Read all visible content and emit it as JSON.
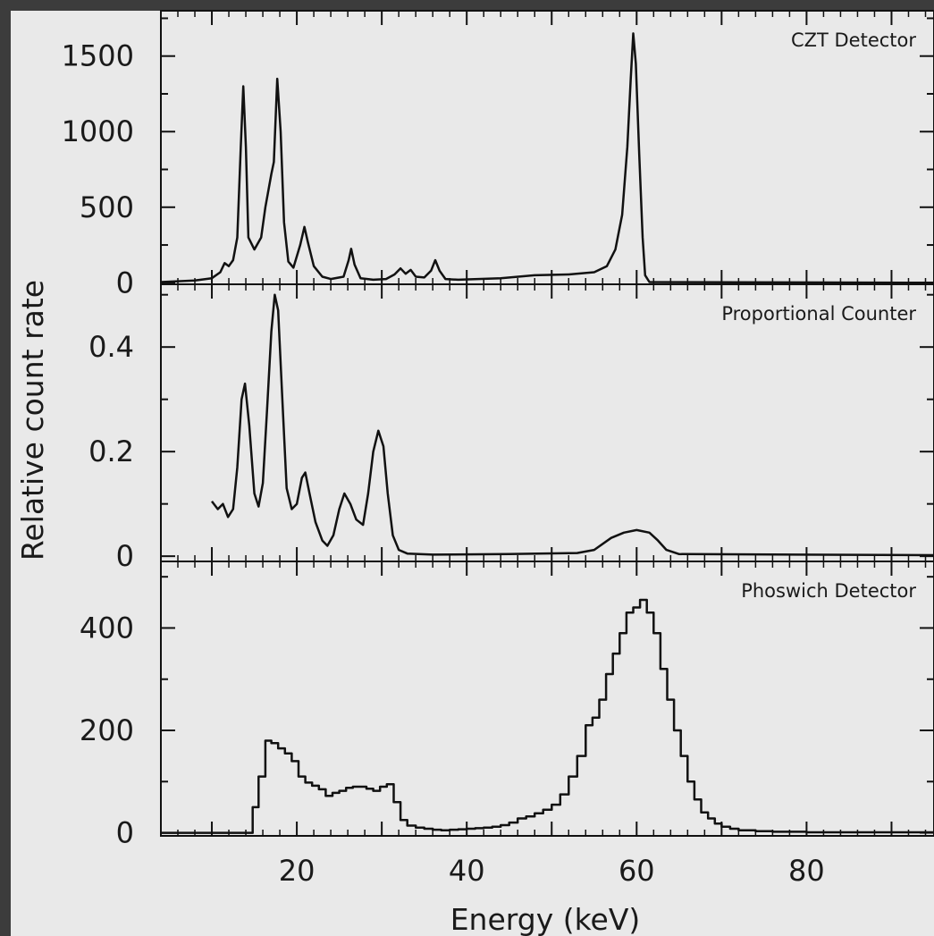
{
  "colors": {
    "background": "#3c3c3c",
    "panel": "#e9e9e9",
    "ink": "#111111"
  },
  "chart_data": {
    "type": "line",
    "xlabel": "Energy (keV)",
    "ylabel": "Relative count rate",
    "x_range": [
      4,
      95
    ],
    "x_ticks": [
      "20",
      "40",
      "60",
      "80"
    ],
    "grid": false,
    "subplots": [
      {
        "label": "CZT Detector",
        "y_range": [
          -10,
          1800
        ],
        "y_ticks": [
          "0",
          "500",
          "1000",
          "1500"
        ],
        "series": [
          {
            "style": "line",
            "points": [
              [
                4,
                5
              ],
              [
                8,
                15
              ],
              [
                10,
                30
              ],
              [
                11,
                70
              ],
              [
                11.5,
                130
              ],
              [
                12,
                110
              ],
              [
                12.5,
                150
              ],
              [
                13,
                300
              ],
              [
                13.4,
                900
              ],
              [
                13.7,
                1300
              ],
              [
                14,
                900
              ],
              [
                14.3,
                300
              ],
              [
                15,
                220
              ],
              [
                15.8,
                300
              ],
              [
                16.3,
                500
              ],
              [
                17,
                720
              ],
              [
                17.3,
                800
              ],
              [
                17.7,
                1350
              ],
              [
                18.1,
                1000
              ],
              [
                18.5,
                400
              ],
              [
                19,
                140
              ],
              [
                19.6,
                100
              ],
              [
                20.4,
                250
              ],
              [
                20.9,
                370
              ],
              [
                21.3,
                270
              ],
              [
                22,
                110
              ],
              [
                23,
                40
              ],
              [
                24,
                25
              ],
              [
                25.5,
                40
              ],
              [
                26.1,
                150
              ],
              [
                26.4,
                225
              ],
              [
                26.8,
                120
              ],
              [
                27.5,
                30
              ],
              [
                29,
                20
              ],
              [
                30.5,
                25
              ],
              [
                31.5,
                55
              ],
              [
                32.2,
                95
              ],
              [
                32.8,
                60
              ],
              [
                33.4,
                85
              ],
              [
                34,
                40
              ],
              [
                35,
                35
              ],
              [
                35.8,
                80
              ],
              [
                36.3,
                150
              ],
              [
                36.8,
                80
              ],
              [
                37.5,
                25
              ],
              [
                39,
                20
              ],
              [
                44,
                30
              ],
              [
                48,
                50
              ],
              [
                52,
                55
              ],
              [
                55,
                70
              ],
              [
                56.5,
                110
              ],
              [
                57.5,
                220
              ],
              [
                58.3,
                450
              ],
              [
                58.9,
                900
              ],
              [
                59.3,
                1350
              ],
              [
                59.6,
                1650
              ],
              [
                59.9,
                1450
              ],
              [
                60.3,
                850
              ],
              [
                60.7,
                300
              ],
              [
                61,
                50
              ],
              [
                61.5,
                5
              ],
              [
                95,
                0
              ]
            ]
          }
        ]
      },
      {
        "label": "Proportional Counter",
        "y_range": [
          -0.01,
          0.52
        ],
        "y_ticks": [
          "0",
          "0.2",
          "0.4"
        ],
        "series": [
          {
            "style": "line",
            "points": [
              [
                10,
                0.105
              ],
              [
                10.7,
                0.09
              ],
              [
                11.3,
                0.1
              ],
              [
                11.9,
                0.075
              ],
              [
                12.5,
                0.09
              ],
              [
                13,
                0.17
              ],
              [
                13.5,
                0.3
              ],
              [
                13.9,
                0.33
              ],
              [
                14.4,
                0.25
              ],
              [
                15,
                0.12
              ],
              [
                15.5,
                0.095
              ],
              [
                16,
                0.14
              ],
              [
                16.5,
                0.28
              ],
              [
                17,
                0.43
              ],
              [
                17.4,
                0.5
              ],
              [
                17.8,
                0.47
              ],
              [
                18.3,
                0.3
              ],
              [
                18.8,
                0.13
              ],
              [
                19.4,
                0.09
              ],
              [
                20,
                0.1
              ],
              [
                20.6,
                0.15
              ],
              [
                21,
                0.16
              ],
              [
                21.5,
                0.12
              ],
              [
                22.2,
                0.065
              ],
              [
                23,
                0.03
              ],
              [
                23.6,
                0.02
              ],
              [
                24.3,
                0.04
              ],
              [
                25,
                0.09
              ],
              [
                25.6,
                0.12
              ],
              [
                26.3,
                0.1
              ],
              [
                27,
                0.07
              ],
              [
                27.8,
                0.06
              ],
              [
                28.4,
                0.12
              ],
              [
                29,
                0.2
              ],
              [
                29.6,
                0.24
              ],
              [
                30.2,
                0.21
              ],
              [
                30.7,
                0.12
              ],
              [
                31.3,
                0.04
              ],
              [
                32,
                0.012
              ],
              [
                33,
                0.005
              ],
              [
                36,
                0.003
              ],
              [
                45,
                0.004
              ],
              [
                53,
                0.006
              ],
              [
                55,
                0.012
              ],
              [
                57,
                0.035
              ],
              [
                58.5,
                0.045
              ],
              [
                60,
                0.05
              ],
              [
                61.5,
                0.045
              ],
              [
                62.5,
                0.03
              ],
              [
                63.5,
                0.012
              ],
              [
                65,
                0.004
              ],
              [
                95,
                0.002
              ]
            ]
          }
        ]
      },
      {
        "label": "Phoswich Detector",
        "y_range": [
          -6,
          530
        ],
        "y_ticks": [
          "0",
          "200",
          "400"
        ],
        "series": [
          {
            "style": "step",
            "points": [
              [
                4,
                0
              ],
              [
                14,
                0
              ],
              [
                14.8,
                50
              ],
              [
                15.5,
                110
              ],
              [
                16.3,
                180
              ],
              [
                17,
                175
              ],
              [
                17.8,
                165
              ],
              [
                18.6,
                155
              ],
              [
                19.4,
                140
              ],
              [
                20.2,
                110
              ],
              [
                21,
                98
              ],
              [
                21.8,
                92
              ],
              [
                22.6,
                85
              ],
              [
                23.4,
                72
              ],
              [
                24.2,
                78
              ],
              [
                25,
                82
              ],
              [
                25.8,
                88
              ],
              [
                26.6,
                90
              ],
              [
                27.4,
                90
              ],
              [
                28.2,
                86
              ],
              [
                29,
                82
              ],
              [
                29.8,
                90
              ],
              [
                30.6,
                95
              ],
              [
                31.4,
                60
              ],
              [
                32.2,
                25
              ],
              [
                33,
                14
              ],
              [
                34,
                10
              ],
              [
                35,
                8
              ],
              [
                36,
                6
              ],
              [
                37,
                5
              ],
              [
                38,
                6
              ],
              [
                39,
                7
              ],
              [
                40,
                8
              ],
              [
                41,
                9
              ],
              [
                42,
                10
              ],
              [
                43,
                12
              ],
              [
                44,
                15
              ],
              [
                45,
                20
              ],
              [
                46,
                28
              ],
              [
                47,
                32
              ],
              [
                48,
                38
              ],
              [
                49,
                45
              ],
              [
                50,
                55
              ],
              [
                51,
                75
              ],
              [
                52,
                110
              ],
              [
                53,
                150
              ],
              [
                54,
                210
              ],
              [
                54.8,
                225
              ],
              [
                55.6,
                260
              ],
              [
                56.4,
                310
              ],
              [
                57.2,
                350
              ],
              [
                58,
                390
              ],
              [
                58.8,
                430
              ],
              [
                59.6,
                440
              ],
              [
                60.4,
                455
              ],
              [
                61.2,
                430
              ],
              [
                62,
                390
              ],
              [
                62.8,
                320
              ],
              [
                63.6,
                260
              ],
              [
                64.4,
                200
              ],
              [
                65.2,
                150
              ],
              [
                66,
                100
              ],
              [
                66.8,
                65
              ],
              [
                67.6,
                40
              ],
              [
                68.4,
                28
              ],
              [
                69.2,
                18
              ],
              [
                70,
                12
              ],
              [
                71,
                8
              ],
              [
                72,
                5
              ],
              [
                74,
                3
              ],
              [
                76,
                2
              ],
              [
                80,
                1
              ],
              [
                95,
                1
              ]
            ]
          }
        ]
      }
    ]
  }
}
